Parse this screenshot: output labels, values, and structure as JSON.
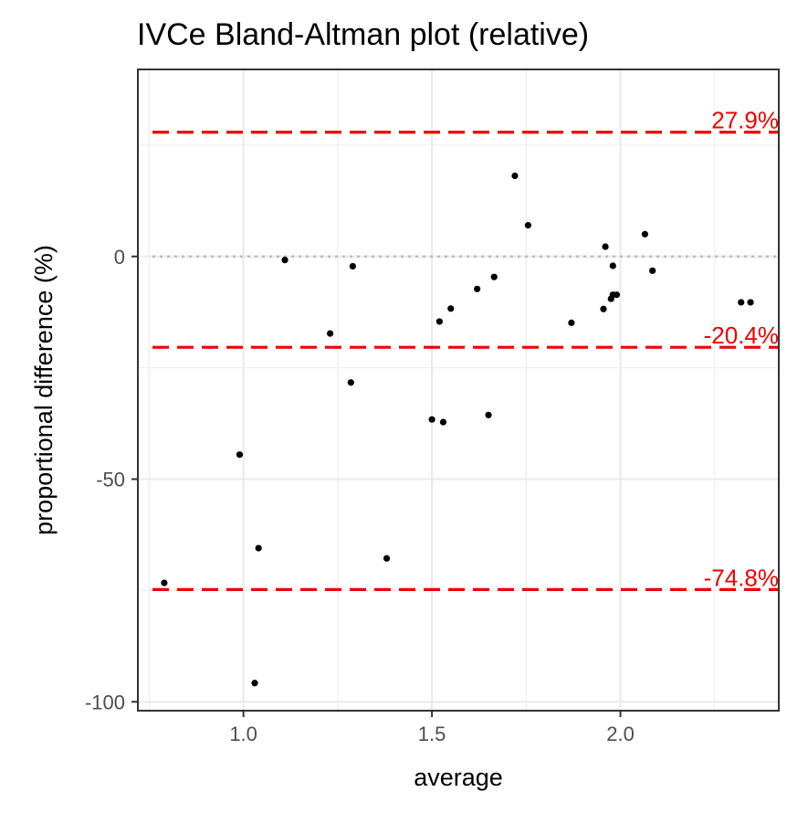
{
  "chart_data": {
    "type": "scatter",
    "title": "IVCe   Bland-Altman plot (relative)",
    "xlabel": "average",
    "ylabel": "proportional difference (%)",
    "xlim": [
      0.72,
      2.42
    ],
    "ylim": [
      -102,
      42
    ],
    "xticks": [
      1.0,
      1.5,
      2.0
    ],
    "xtick_labels": [
      "1.0",
      "1.5",
      "2.0"
    ],
    "yticks": [
      0,
      -50,
      -100
    ],
    "ytick_labels": [
      "0",
      "-50",
      "-100"
    ],
    "grid": true,
    "reference_lines": [
      {
        "y": 27.9,
        "label": "27.9%",
        "color": "#ee0000",
        "style": "dashed"
      },
      {
        "y": -20.4,
        "label": "-20.4%",
        "color": "#ee0000",
        "style": "dashed"
      },
      {
        "y": -74.8,
        "label": "-74.8%",
        "color": "#ee0000",
        "style": "dashed"
      }
    ],
    "zero_line": {
      "y": 0,
      "color": "#bbbbbb",
      "style": "dotted"
    },
    "series": [
      {
        "color": "#000000",
        "points": [
          {
            "x": 0.79,
            "y": -73.3
          },
          {
            "x": 0.99,
            "y": -44.5
          },
          {
            "x": 1.03,
            "y": -95.8
          },
          {
            "x": 1.04,
            "y": -65.5
          },
          {
            "x": 1.11,
            "y": -0.8
          },
          {
            "x": 1.23,
            "y": -17.3
          },
          {
            "x": 1.285,
            "y": -28.3
          },
          {
            "x": 1.29,
            "y": -2.2
          },
          {
            "x": 1.38,
            "y": -67.8
          },
          {
            "x": 1.5,
            "y": -36.6
          },
          {
            "x": 1.52,
            "y": -14.6
          },
          {
            "x": 1.53,
            "y": -37.2
          },
          {
            "x": 1.55,
            "y": -11.7
          },
          {
            "x": 1.62,
            "y": -7.3
          },
          {
            "x": 1.65,
            "y": -35.6
          },
          {
            "x": 1.665,
            "y": -4.6
          },
          {
            "x": 1.72,
            "y": 18.1
          },
          {
            "x": 1.755,
            "y": 7.0
          },
          {
            "x": 1.87,
            "y": -14.9
          },
          {
            "x": 1.955,
            "y": -11.8
          },
          {
            "x": 1.96,
            "y": 2.2
          },
          {
            "x": 1.975,
            "y": -9.5
          },
          {
            "x": 1.98,
            "y": -8.6
          },
          {
            "x": 1.98,
            "y": -2.1
          },
          {
            "x": 1.99,
            "y": -8.6
          },
          {
            "x": 2.065,
            "y": 5.0
          },
          {
            "x": 2.085,
            "y": -3.2
          },
          {
            "x": 2.32,
            "y": -10.3
          },
          {
            "x": 2.345,
            "y": -10.3
          }
        ]
      }
    ]
  }
}
